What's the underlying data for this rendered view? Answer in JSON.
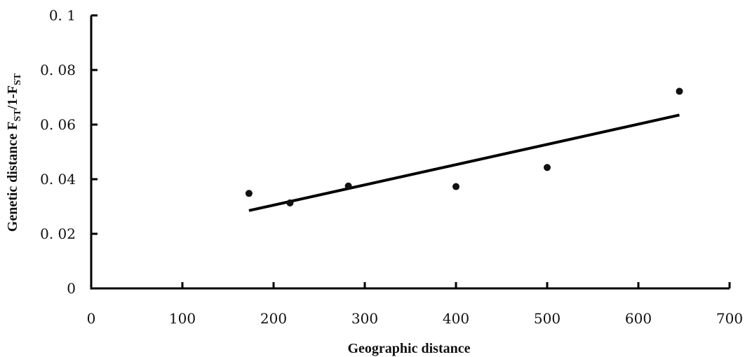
{
  "chart_data": {
    "type": "scatter",
    "title": "",
    "xlabel": "Geographic distance",
    "ylabel": "Genetic distance F_ST/1-F_ST",
    "ylabel_parts": {
      "prefix": "Genetic distance F",
      "sub1": "ST",
      "middle": "/1-F",
      "sub2": "ST"
    },
    "xlim": [
      0,
      700
    ],
    "ylim": [
      0,
      0.1
    ],
    "x_ticks": [
      0,
      100,
      200,
      300,
      400,
      500,
      600,
      700
    ],
    "y_ticks": [
      0,
      0.02,
      0.04,
      0.06,
      0.08,
      0.1
    ],
    "x_tick_labels": [
      "0",
      "100",
      "200",
      "300",
      "400",
      "500",
      "600",
      "700"
    ],
    "y_tick_labels": [
      "0",
      "0. 02",
      "0. 04",
      "0. 06",
      "0. 08",
      "0. 1"
    ],
    "grid": false,
    "legend": "none",
    "series": [
      {
        "points": [
          {
            "x": 173,
            "y": 0.0348
          },
          {
            "x": 218,
            "y": 0.0313
          },
          {
            "x": 282,
            "y": 0.0375
          },
          {
            "x": 400,
            "y": 0.0373
          },
          {
            "x": 500,
            "y": 0.0443
          },
          {
            "x": 645,
            "y": 0.0722
          }
        ]
      }
    ],
    "trendline": {
      "x": [
        173,
        645
      ],
      "y": [
        0.0285,
        0.0635
      ]
    },
    "colors": {
      "marker": "#111111",
      "line": "#000000",
      "axis": "#000000"
    }
  }
}
